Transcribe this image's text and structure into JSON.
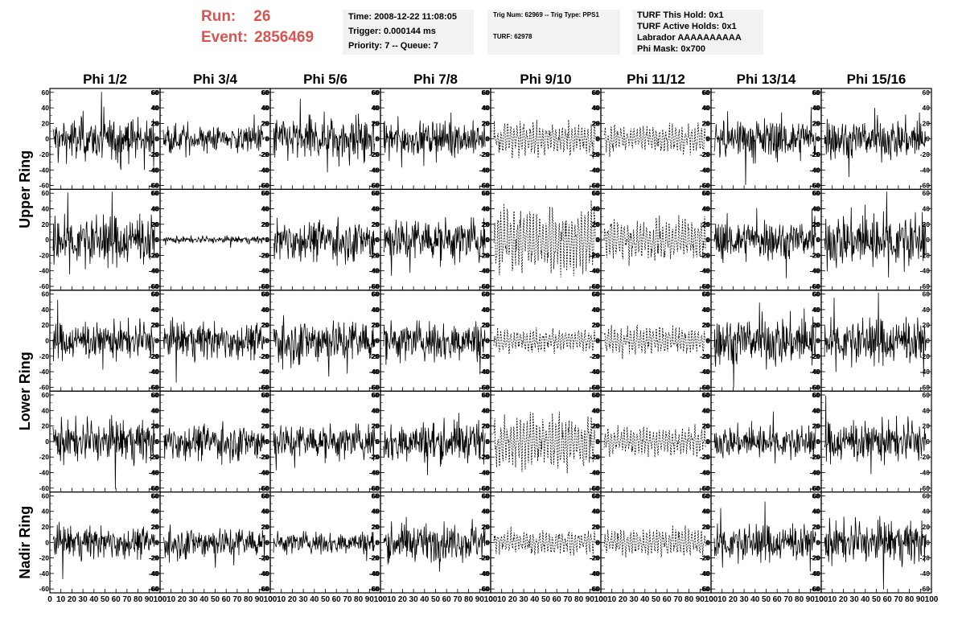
{
  "header": {
    "run_label": "Run:",
    "run_value": "26",
    "event_label": "Event:",
    "event_value": "2856469",
    "run_color": "#d9534f"
  },
  "info_box_1": {
    "time": "Time: 2008-12-22 11:08:05",
    "trigger": "Trigger: 0.000144 ms",
    "priority": "Priority: 7 -- Queue: 7"
  },
  "info_box_2": {
    "trig": "Trig Num: 62969 -- Trig Type: PPS1",
    "turf": "TURF: 62978"
  },
  "info_box_3": {
    "hold": "TURF This Hold: 0x1",
    "active": "TURF Active Holds: 0x1",
    "labrador": "Labrador AAAAAAAAAA",
    "phimask": "Phi Mask: 0x700"
  },
  "columns": [
    "Phi 1/2",
    "Phi 3/4",
    "Phi 5/6",
    "Phi 7/8",
    "Phi 9/10",
    "Phi 11/12",
    "Phi 13/14",
    "Phi 15/16"
  ],
  "row_groups": [
    "Upper Ring",
    "Lower Ring",
    "Nadir Ring"
  ],
  "chart_data": {
    "type": "line",
    "description_rows": 5,
    "description_cols": 8,
    "y_ticks": [
      60,
      40,
      20,
      0,
      -20,
      -40,
      -60
    ],
    "ylim": [
      -65,
      65
    ],
    "x_ticks": [
      0,
      10,
      20,
      30,
      40,
      50,
      60,
      70,
      80,
      90,
      100
    ],
    "xlim": [
      0,
      100
    ],
    "dashed_columns": [
      4,
      5
    ],
    "amplitude": [
      [
        18,
        12,
        20,
        15,
        14,
        12,
        18,
        18
      ],
      [
        22,
        3,
        18,
        20,
        28,
        18,
        18,
        24
      ],
      [
        16,
        16,
        20,
        18,
        10,
        12,
        22,
        20
      ],
      [
        18,
        16,
        16,
        18,
        22,
        12,
        14,
        18
      ],
      [
        14,
        14,
        10,
        16,
        10,
        12,
        16,
        18
      ]
    ]
  }
}
